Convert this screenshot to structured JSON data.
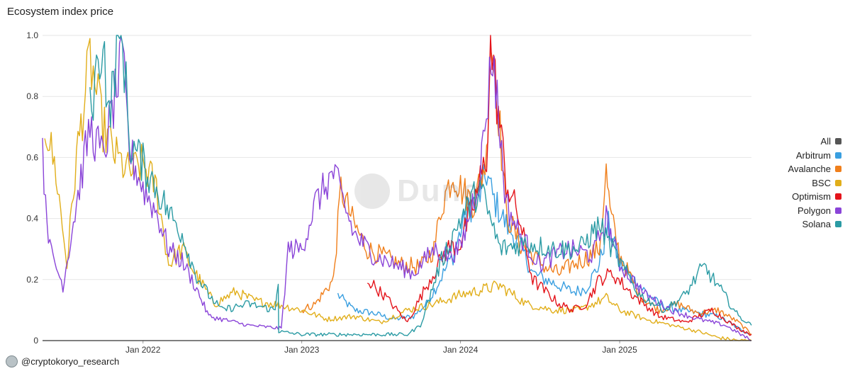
{
  "chart_data": {
    "type": "line",
    "title": "Ecosystem index price",
    "xlabel": "",
    "ylabel": "",
    "ylim": [
      0,
      1.0
    ],
    "y_ticks": [
      "0",
      "0.2",
      "0.4",
      "0.6",
      "0.8",
      "1.0"
    ],
    "x_range": [
      "2021-05-15",
      "2025-10-31"
    ],
    "x_ticks": [
      {
        "label": "Jan 2022",
        "date": "2022-01-01"
      },
      {
        "label": "Jan 2023",
        "date": "2023-01-01"
      },
      {
        "label": "Jan 2024",
        "date": "2024-01-01"
      },
      {
        "label": "Jan 2025",
        "date": "2025-01-01"
      }
    ],
    "legend_position": "right",
    "series": [
      {
        "name": "All",
        "color": "#555555",
        "x": [],
        "values": []
      },
      {
        "name": "Arbitrum",
        "color": "#3a9fe0",
        "x": [
          "2023-03-25",
          "2023-05-01",
          "2023-06-15",
          "2023-08-01",
          "2023-09-15",
          "2023-10-15",
          "2023-11-15",
          "2023-12-15",
          "2024-01-15",
          "2024-02-15",
          "2024-03-01",
          "2024-03-15",
          "2024-04-15",
          "2024-05-15",
          "2024-06-15",
          "2024-07-15",
          "2024-08-15",
          "2024-09-15",
          "2024-10-15",
          "2024-11-15",
          "2024-12-06",
          "2025-01-01",
          "2025-02-15",
          "2025-04-01",
          "2025-05-15",
          "2025-07-01",
          "2025-08-15",
          "2025-10-01",
          "2025-10-31"
        ],
        "values": [
          0.15,
          0.1,
          0.09,
          0.07,
          0.08,
          0.12,
          0.2,
          0.28,
          0.42,
          0.48,
          0.55,
          0.47,
          0.38,
          0.32,
          0.22,
          0.2,
          0.18,
          0.16,
          0.17,
          0.25,
          0.38,
          0.25,
          0.18,
          0.12,
          0.1,
          0.09,
          0.08,
          0.04,
          0.02
        ]
      },
      {
        "name": "Avalanche",
        "color": "#f07f1b",
        "x": [
          "2023-01-01",
          "2023-02-01",
          "2023-03-15",
          "2023-04-01",
          "2023-05-01",
          "2023-06-01",
          "2023-07-01",
          "2023-08-15",
          "2023-10-01",
          "2023-11-01",
          "2023-11-20",
          "2023-12-15",
          "2024-01-01",
          "2024-02-01",
          "2024-03-01",
          "2024-03-10",
          "2024-03-25",
          "2024-04-15",
          "2024-05-15",
          "2024-06-15",
          "2024-07-15",
          "2024-08-15",
          "2024-09-15",
          "2024-10-15",
          "2024-11-15",
          "2024-12-01",
          "2024-12-10",
          "2025-01-01",
          "2025-02-15",
          "2025-04-01",
          "2025-05-15",
          "2025-07-01",
          "2025-08-15",
          "2025-10-01",
          "2025-10-31"
        ],
        "values": [
          0.1,
          0.12,
          0.2,
          0.5,
          0.38,
          0.3,
          0.28,
          0.25,
          0.24,
          0.3,
          0.45,
          0.55,
          0.5,
          0.45,
          0.6,
          1.0,
          0.82,
          0.42,
          0.32,
          0.28,
          0.24,
          0.22,
          0.25,
          0.27,
          0.3,
          0.55,
          0.42,
          0.28,
          0.15,
          0.1,
          0.12,
          0.09,
          0.1,
          0.06,
          0.02
        ]
      },
      {
        "name": "BSC",
        "color": "#e1ae1a",
        "x": [
          "2021-05-20",
          "2021-06-15",
          "2021-07-10",
          "2021-08-01",
          "2021-09-01",
          "2021-10-01",
          "2021-11-01",
          "2021-12-01",
          "2022-01-01",
          "2022-02-01",
          "2022-03-01",
          "2022-04-01",
          "2022-05-01",
          "2022-06-15",
          "2022-08-01",
          "2022-09-15",
          "2022-11-01",
          "2023-01-01",
          "2023-03-01",
          "2023-05-01",
          "2023-07-01",
          "2023-09-01",
          "2023-11-01",
          "2024-01-01",
          "2024-03-01",
          "2024-04-01",
          "2024-06-01",
          "2024-08-01",
          "2024-10-01",
          "2024-12-01",
          "2025-01-01",
          "2025-03-01",
          "2025-05-01",
          "2025-07-01",
          "2025-08-15",
          "2025-10-01",
          "2025-10-31"
        ],
        "values": [
          0.72,
          0.55,
          0.25,
          0.6,
          0.92,
          0.7,
          0.6,
          0.55,
          0.58,
          0.5,
          0.25,
          0.3,
          0.22,
          0.12,
          0.16,
          0.13,
          0.12,
          0.1,
          0.07,
          0.08,
          0.06,
          0.1,
          0.12,
          0.15,
          0.17,
          0.18,
          0.12,
          0.1,
          0.1,
          0.14,
          0.1,
          0.07,
          0.05,
          0.03,
          0.01,
          0.0,
          0.0
        ]
      },
      {
        "name": "Optimism",
        "color": "#e4141b",
        "x": [
          "2023-06-01",
          "2023-07-15",
          "2023-09-01",
          "2023-10-15",
          "2023-12-01",
          "2024-01-01",
          "2024-02-01",
          "2024-03-01",
          "2024-03-10",
          "2024-04-15",
          "2024-05-15",
          "2024-06-15",
          "2024-07-15",
          "2024-08-15",
          "2024-09-15",
          "2024-10-15",
          "2024-11-15",
          "2024-12-15",
          "2025-02-01",
          "2025-04-01",
          "2025-06-01",
          "2025-08-01",
          "2025-10-01",
          "2025-10-31"
        ],
        "values": [
          0.2,
          0.14,
          0.06,
          0.18,
          0.3,
          0.32,
          0.45,
          0.6,
          0.98,
          0.52,
          0.4,
          0.2,
          0.16,
          0.12,
          0.1,
          0.12,
          0.2,
          0.22,
          0.15,
          0.08,
          0.06,
          0.1,
          0.04,
          0.02
        ]
      },
      {
        "name": "Polygon",
        "color": "#8a44d8",
        "x": [
          "2021-05-15",
          "2021-06-01",
          "2021-07-01",
          "2021-08-01",
          "2021-09-01",
          "2021-10-01",
          "2021-11-15",
          "2021-12-01",
          "2022-01-01",
          "2022-02-01",
          "2022-03-01",
          "2022-04-01",
          "2022-05-01",
          "2022-06-01",
          "2022-07-01",
          "2022-09-01",
          "2022-11-15",
          "2022-12-01",
          "2023-01-01",
          "2023-02-01",
          "2023-03-15",
          "2023-05-01",
          "2023-06-15",
          "2023-08-01",
          "2023-09-15",
          "2023-11-01",
          "2023-12-01",
          "2024-01-01",
          "2024-02-15",
          "2024-03-15",
          "2024-04-15",
          "2024-05-15",
          "2024-07-01",
          "2024-09-01",
          "2024-11-01",
          "2024-12-01",
          "2025-01-01",
          "2025-03-01",
          "2025-05-01",
          "2025-07-01",
          "2025-09-01",
          "2025-10-31"
        ],
        "values": [
          0.6,
          0.3,
          0.18,
          0.45,
          0.7,
          0.6,
          0.92,
          0.62,
          0.5,
          0.42,
          0.3,
          0.26,
          0.18,
          0.08,
          0.07,
          0.05,
          0.04,
          0.3,
          0.3,
          0.45,
          0.55,
          0.35,
          0.28,
          0.25,
          0.22,
          0.3,
          0.28,
          0.3,
          0.55,
          0.95,
          0.45,
          0.35,
          0.25,
          0.3,
          0.28,
          0.4,
          0.25,
          0.15,
          0.1,
          0.07,
          0.05,
          0.0
        ]
      },
      {
        "name": "Solana",
        "color": "#2b9ba4",
        "x": [
          "2021-09-01",
          "2021-10-01",
          "2021-10-15",
          "2021-11-01",
          "2021-11-15",
          "2021-12-01",
          "2022-01-01",
          "2022-02-01",
          "2022-03-01",
          "2022-04-01",
          "2022-05-01",
          "2022-06-01",
          "2022-07-01",
          "2022-09-01",
          "2022-11-01",
          "2022-11-08",
          "2022-11-09",
          "2023-01-01",
          "2023-03-01",
          "2023-05-01",
          "2023-07-01",
          "2023-09-01",
          "2023-10-01",
          "2023-11-15",
          "2024-01-01",
          "2024-02-15",
          "2024-04-01",
          "2024-06-01",
          "2024-08-01",
          "2024-10-01",
          "2024-11-15",
          "2024-12-15",
          "2025-02-15",
          "2025-04-15",
          "2025-06-01",
          "2025-07-01",
          "2025-07-15",
          "2025-08-15",
          "2025-10-01",
          "2025-10-31"
        ],
        "values": [
          0.75,
          1.0,
          0.72,
          0.95,
          1.0,
          0.65,
          0.58,
          0.5,
          0.42,
          0.35,
          0.22,
          0.15,
          0.1,
          0.12,
          0.1,
          0.2,
          0.03,
          0.02,
          0.02,
          0.02,
          0.02,
          0.02,
          0.05,
          0.25,
          0.4,
          0.5,
          0.3,
          0.32,
          0.3,
          0.3,
          0.38,
          0.3,
          0.15,
          0.1,
          0.15,
          0.22,
          0.24,
          0.18,
          0.08,
          0.05
        ]
      }
    ]
  },
  "credit": "@cryptokoryo_research",
  "watermark": "Dune"
}
